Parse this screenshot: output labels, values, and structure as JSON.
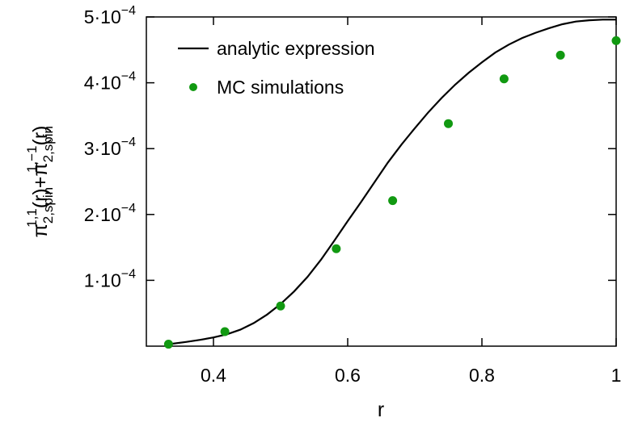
{
  "chart_data": {
    "type": "line",
    "xlabel": "r",
    "ylabel": {
      "parts": [
        {
          "text": "π",
          "style": "normal"
        },
        {
          "text": "2,spin",
          "style": "sub"
        },
        {
          "text": "1,1",
          "style": "sup"
        },
        {
          "text": "(r)+π",
          "style": "normal"
        },
        {
          "text": "2,spin",
          "style": "sub"
        },
        {
          "text": "1,−1",
          "style": "sup"
        },
        {
          "text": "(r)",
          "style": "normal"
        }
      ]
    },
    "xlim": [
      0.3,
      1.0
    ],
    "ylim": [
      0,
      0.0005
    ],
    "x_ticks": [
      {
        "value": 0.4,
        "label": "0.4"
      },
      {
        "value": 0.6,
        "label": "0.6"
      },
      {
        "value": 0.8,
        "label": "0.8"
      },
      {
        "value": 1.0,
        "label": "1"
      }
    ],
    "y_ticks": [
      {
        "value": 0.0001,
        "label": "1·10",
        "exp": "−4"
      },
      {
        "value": 0.0002,
        "label": "2·10",
        "exp": "−4"
      },
      {
        "value": 0.0003,
        "label": "3·10",
        "exp": "−4"
      },
      {
        "value": 0.0004,
        "label": "4·10",
        "exp": "−4"
      },
      {
        "value": 0.0005,
        "label": "5·10",
        "exp": "−4"
      }
    ],
    "legend_position": "top-left",
    "series": [
      {
        "name": "analytic expression",
        "kind": "line",
        "color": "#000000",
        "x": [
          0.333,
          0.36,
          0.38,
          0.4,
          0.42,
          0.44,
          0.46,
          0.48,
          0.5,
          0.52,
          0.54,
          0.56,
          0.58,
          0.6,
          0.62,
          0.64,
          0.66,
          0.68,
          0.7,
          0.72,
          0.74,
          0.76,
          0.78,
          0.8,
          0.82,
          0.84,
          0.86,
          0.88,
          0.9,
          0.92,
          0.94,
          0.96,
          0.98,
          1.0
        ],
        "y": [
          3e-06,
          6.5e-06,
          9.5e-06,
          1.32e-05,
          1.8e-05,
          2.5e-05,
          3.5e-05,
          4.8e-05,
          6.4e-05,
          8.3e-05,
          0.000105,
          0.000131,
          0.00016,
          0.00019,
          0.000219,
          0.000249,
          0.000279,
          0.000306,
          0.000331,
          0.000355,
          0.000377,
          0.000397,
          0.000415,
          0.000431,
          0.000446,
          0.000458,
          0.000468,
          0.000476,
          0.000483,
          0.000489,
          0.000493,
          0.000495,
          0.000496,
          0.000496
        ]
      },
      {
        "name": "MC simulations",
        "kind": "scatter",
        "color": "#119911",
        "x": [
          0.333,
          0.417,
          0.5,
          0.583,
          0.667,
          0.75,
          0.833,
          0.917,
          1.0
        ],
        "y": [
          3e-06,
          2.2e-05,
          6.1e-05,
          0.000148,
          0.000221,
          0.000338,
          0.000406,
          0.000442,
          0.000464
        ]
      }
    ]
  }
}
